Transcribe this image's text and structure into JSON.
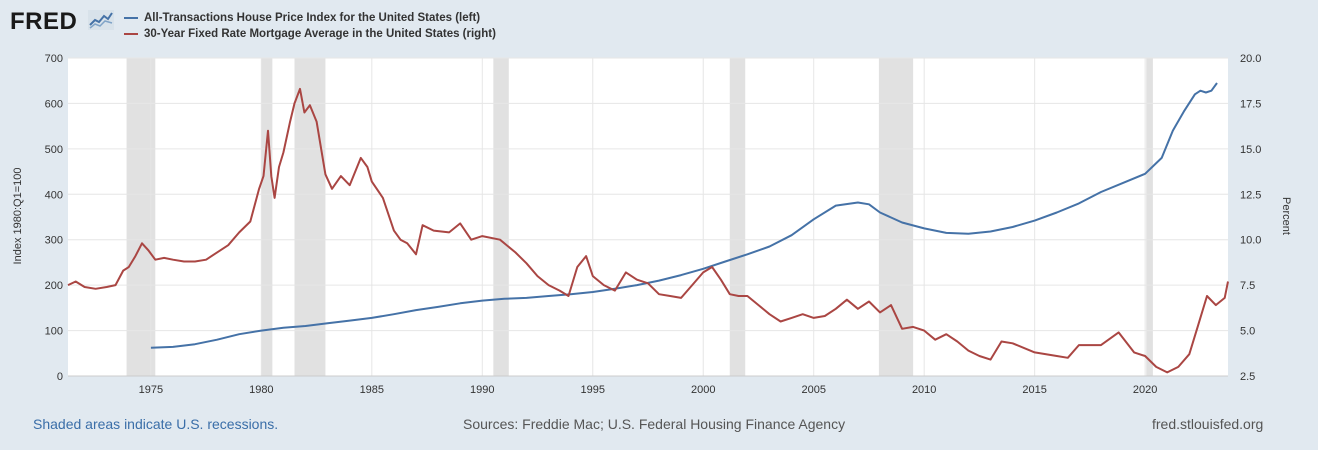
{
  "header": {
    "logo_text": "FRED"
  },
  "legend": [
    {
      "label": "All-Transactions House Price Index for the United States (left)",
      "color": "#4572a7"
    },
    {
      "label": "30-Year Fixed Rate Mortgage Average in the United States (right)",
      "color": "#aa4643"
    }
  ],
  "footer": {
    "recessions_note": "Shaded areas indicate U.S. recessions.",
    "sources": "Sources: Freddie Mac; U.S. Federal Housing Finance Agency",
    "site": "fred.stlouisfed.org"
  },
  "colors": {
    "background": "#e1e9f0",
    "plot_background": "#ffffff",
    "recession_shade": "#e1e1e1",
    "house_price_line": "#4572a7",
    "mortgage_line": "#aa4643"
  },
  "chart_data": {
    "type": "line",
    "xlim": [
      1971.25,
      2023.75
    ],
    "x_ticks": [
      1975,
      1980,
      1985,
      1990,
      1995,
      2000,
      2005,
      2010,
      2015,
      2020
    ],
    "y_left": {
      "label": "Index 1980:Q1=100",
      "lim": [
        0,
        700
      ],
      "ticks": [
        0,
        100,
        200,
        300,
        400,
        500,
        600,
        700
      ]
    },
    "y_right": {
      "label": "Percent",
      "lim": [
        2.5,
        20.0
      ],
      "ticks": [
        "2.5",
        "5.0",
        "7.5",
        "10.0",
        "12.5",
        "15.0",
        "17.5",
        "20.0"
      ]
    },
    "grid": true,
    "legend_position": "top-left",
    "recessions": [
      [
        1973.9,
        1975.2
      ],
      [
        1980.0,
        1980.5
      ],
      [
        1981.5,
        1982.9
      ],
      [
        1990.5,
        1991.2
      ],
      [
        2001.2,
        2001.9
      ],
      [
        2007.95,
        2009.5
      ],
      [
        2020.05,
        2020.35
      ]
    ],
    "series": [
      {
        "name": "All-Transactions House Price Index for the United States (left)",
        "axis": "left",
        "x": [
          1975.0,
          1976.0,
          1977.0,
          1978.0,
          1979.0,
          1980.0,
          1981.0,
          1982.0,
          1983.0,
          1984.0,
          1985.0,
          1986.0,
          1987.0,
          1988.0,
          1989.0,
          1990.0,
          1991.0,
          1992.0,
          1993.0,
          1994.0,
          1995.0,
          1996.0,
          1997.0,
          1998.0,
          1999.0,
          2000.0,
          2001.0,
          2002.0,
          2003.0,
          2004.0,
          2005.0,
          2006.0,
          2007.0,
          2007.5,
          2008.0,
          2009.0,
          2010.0,
          2011.0,
          2012.0,
          2013.0,
          2014.0,
          2015.0,
          2016.0,
          2017.0,
          2018.0,
          2019.0,
          2020.0,
          2020.75,
          2021.25,
          2021.75,
          2022.25,
          2022.5,
          2022.75,
          2023.0,
          2023.25
        ],
        "values": [
          62,
          64,
          70,
          80,
          92,
          100,
          106,
          110,
          116,
          122,
          128,
          136,
          145,
          152,
          160,
          166,
          170,
          172,
          176,
          180,
          185,
          192,
          200,
          210,
          222,
          236,
          252,
          268,
          285,
          310,
          345,
          375,
          382,
          378,
          360,
          338,
          325,
          315,
          313,
          318,
          328,
          342,
          360,
          380,
          405,
          425,
          445,
          480,
          540,
          582,
          620,
          628,
          624,
          628,
          645
        ]
      },
      {
        "name": "30-Year Fixed Rate Mortgage Average in the United States (right)",
        "axis": "right",
        "x": [
          1971.25,
          1971.6,
          1972.0,
          1972.5,
          1973.0,
          1973.4,
          1973.75,
          1974.0,
          1974.3,
          1974.6,
          1974.9,
          1975.2,
          1975.6,
          1976.0,
          1976.5,
          1977.0,
          1977.5,
          1978.0,
          1978.5,
          1979.0,
          1979.5,
          1979.9,
          1980.1,
          1980.3,
          1980.45,
          1980.6,
          1980.8,
          1981.0,
          1981.3,
          1981.5,
          1981.75,
          1981.95,
          1982.2,
          1982.5,
          1982.9,
          1983.2,
          1983.6,
          1984.0,
          1984.5,
          1984.8,
          1985.0,
          1985.5,
          1986.0,
          1986.3,
          1986.6,
          1987.0,
          1987.3,
          1987.8,
          1988.5,
          1989.0,
          1989.5,
          1990.0,
          1990.8,
          1991.5,
          1992.0,
          1992.5,
          1993.0,
          1993.5,
          1993.9,
          1994.3,
          1994.7,
          1995.0,
          1995.5,
          1996.0,
          1996.5,
          1997.0,
          1997.5,
          1998.0,
          1998.5,
          1999.0,
          1999.5,
          2000.0,
          2000.4,
          2000.8,
          2001.2,
          2001.6,
          2002.0,
          2002.5,
          2003.0,
          2003.5,
          2004.0,
          2004.5,
          2005.0,
          2005.5,
          2006.0,
          2006.5,
          2007.0,
          2007.5,
          2008.0,
          2008.5,
          2009.0,
          2009.5,
          2010.0,
          2010.5,
          2011.0,
          2011.5,
          2012.0,
          2012.5,
          2013.0,
          2013.5,
          2014.0,
          2015.0,
          2016.0,
          2016.5,
          2017.0,
          2018.0,
          2018.8,
          2019.5,
          2020.0,
          2020.5,
          2021.0,
          2021.5,
          2022.0,
          2022.4,
          2022.8,
          2023.2,
          2023.6,
          2023.75
        ],
        "values": [
          7.5,
          7.7,
          7.4,
          7.3,
          7.4,
          7.5,
          8.3,
          8.5,
          9.1,
          9.8,
          9.4,
          8.9,
          9.0,
          8.9,
          8.8,
          8.8,
          8.9,
          9.3,
          9.7,
          10.4,
          11.0,
          12.8,
          13.5,
          16.0,
          13.5,
          12.3,
          14.0,
          14.8,
          16.5,
          17.5,
          18.3,
          17.0,
          17.4,
          16.5,
          13.6,
          12.8,
          13.5,
          13.0,
          14.5,
          14.0,
          13.2,
          12.3,
          10.5,
          10.0,
          9.8,
          9.2,
          10.8,
          10.5,
          10.4,
          10.9,
          10.0,
          10.2,
          10.0,
          9.3,
          8.7,
          8.0,
          7.5,
          7.2,
          6.9,
          8.5,
          9.1,
          8.0,
          7.5,
          7.2,
          8.2,
          7.8,
          7.6,
          7.0,
          6.9,
          6.8,
          7.5,
          8.2,
          8.5,
          7.8,
          7.0,
          6.9,
          6.9,
          6.4,
          5.9,
          5.5,
          5.7,
          5.9,
          5.7,
          5.8,
          6.2,
          6.7,
          6.2,
          6.6,
          6.0,
          6.4,
          5.1,
          5.2,
          5.0,
          4.5,
          4.8,
          4.4,
          3.9,
          3.6,
          3.4,
          4.4,
          4.3,
          3.8,
          3.6,
          3.5,
          4.2,
          4.2,
          4.9,
          3.8,
          3.6,
          3.0,
          2.7,
          3.0,
          3.7,
          5.3,
          6.9,
          6.4,
          6.8,
          7.7
        ]
      }
    ]
  }
}
